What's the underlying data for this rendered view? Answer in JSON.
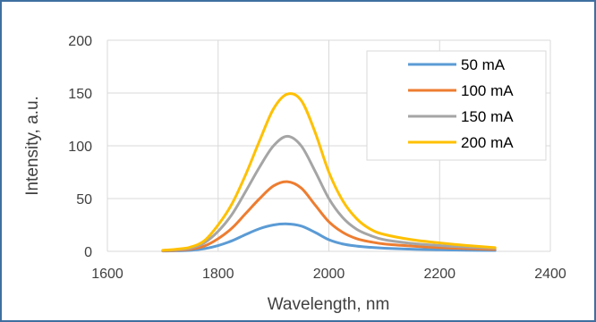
{
  "chart_data": {
    "type": "line",
    "title": "",
    "xlabel": "Wavelength, nm",
    "ylabel": "Intensity, a.u.",
    "xlim": [
      1600,
      2400
    ],
    "ylim": [
      0,
      200
    ],
    "x_ticks": [
      1600,
      1800,
      2000,
      2200,
      2400
    ],
    "y_ticks": [
      0,
      50,
      100,
      150,
      200
    ],
    "grid": true,
    "legend_position": "top-right",
    "x": [
      1700,
      1725,
      1750,
      1775,
      1800,
      1825,
      1850,
      1875,
      1900,
      1925,
      1950,
      1975,
      2000,
      2025,
      2050,
      2075,
      2100,
      2150,
      2200,
      2250,
      2300
    ],
    "series": [
      {
        "name": "50 mA",
        "color": "#5b9bd5",
        "values": [
          0.3,
          0.5,
          1.0,
          2.5,
          5.5,
          10,
          16,
          21.5,
          25,
          26,
          24,
          18,
          11,
          7,
          5,
          3.8,
          3,
          2,
          1.5,
          1.1,
          0.8
        ]
      },
      {
        "name": "100 mA",
        "color": "#ed7d31",
        "values": [
          0.5,
          1,
          2,
          5,
          12,
          22,
          36,
          50,
          62,
          66,
          60,
          44,
          28,
          18,
          12,
          9,
          7,
          5,
          3.5,
          2.5,
          1.8
        ]
      },
      {
        "name": "150 mA",
        "color": "#a5a5a5",
        "values": [
          0.8,
          1.5,
          3,
          8,
          19,
          35,
          57,
          80,
          100,
          109,
          100,
          76,
          50,
          32,
          21,
          15,
          11,
          7.5,
          5.5,
          4,
          3
        ]
      },
      {
        "name": "200 mA",
        "color": "#ffc000",
        "values": [
          1,
          2,
          4,
          10,
          25,
          45,
          73,
          105,
          135,
          149,
          143,
          113,
          75,
          48,
          31,
          21,
          16,
          11,
          8,
          5.5,
          3.5
        ]
      }
    ]
  }
}
